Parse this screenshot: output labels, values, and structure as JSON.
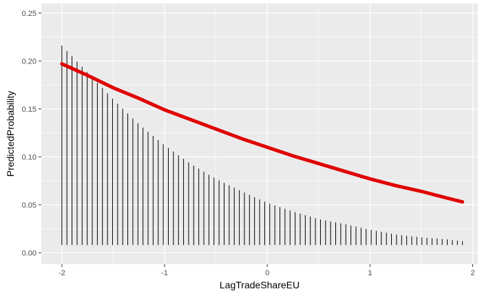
{
  "chart_data": {
    "type": "line",
    "xlabel": "LagTradeShareEU",
    "ylabel": "PredictedProbability",
    "xlim": [
      -2.2,
      2.05
    ],
    "ylim": [
      -0.012,
      0.26
    ],
    "x_ticks": [
      -2,
      -1,
      0,
      1,
      2
    ],
    "x_tick_labels": [
      "-2",
      "-1",
      "0",
      "1",
      "2"
    ],
    "y_ticks": [
      0.0,
      0.05,
      0.1,
      0.15,
      0.2,
      0.25
    ],
    "y_tick_labels": [
      "0.00",
      "0.05",
      "0.10",
      "0.15",
      "0.20",
      "0.25"
    ],
    "grid": true,
    "series": [
      {
        "kind": "line",
        "color": "#e00000",
        "x": [
          -2.0,
          -1.75,
          -1.5,
          -1.25,
          -1.0,
          -0.75,
          -0.5,
          -0.25,
          0.0,
          0.25,
          0.5,
          0.75,
          1.0,
          1.25,
          1.5,
          1.75,
          1.9
        ],
        "y": [
          0.197,
          0.185,
          0.172,
          0.161,
          0.149,
          0.139,
          0.129,
          0.119,
          0.11,
          0.101,
          0.093,
          0.085,
          0.077,
          0.07,
          0.064,
          0.057,
          0.053
        ]
      },
      {
        "kind": "vertical-intervals",
        "color": "#000000",
        "lower": 0.008,
        "x": [
          -2.0,
          -1.75,
          -1.5,
          -1.25,
          -1.0,
          -0.75,
          -0.5,
          -0.25,
          0.0,
          0.25,
          0.5,
          0.75,
          1.0,
          1.25,
          1.5,
          1.75,
          1.9
        ],
        "upper": [
          0.216,
          0.188,
          0.16,
          0.134,
          0.112,
          0.093,
          0.077,
          0.064,
          0.052,
          0.043,
          0.035,
          0.03,
          0.024,
          0.019,
          0.016,
          0.014,
          0.012
        ]
      }
    ]
  }
}
